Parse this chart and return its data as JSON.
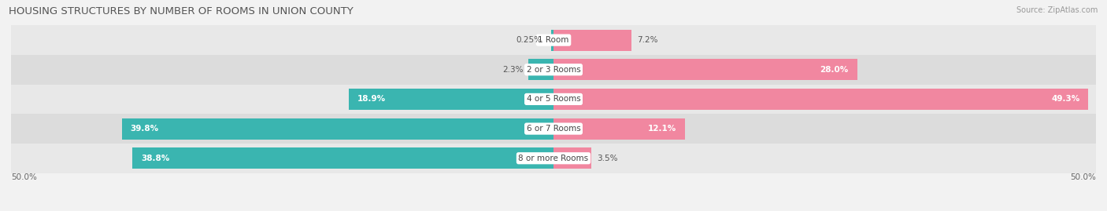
{
  "title": "HOUSING STRUCTURES BY NUMBER OF ROOMS IN UNION COUNTY",
  "source": "Source: ZipAtlas.com",
  "categories": [
    "1 Room",
    "2 or 3 Rooms",
    "4 or 5 Rooms",
    "6 or 7 Rooms",
    "8 or more Rooms"
  ],
  "owner_values": [
    0.25,
    2.3,
    18.9,
    39.8,
    38.8
  ],
  "renter_values": [
    7.2,
    28.0,
    49.3,
    12.1,
    3.5
  ],
  "owner_color": "#3ab5b0",
  "renter_color": "#f187a0",
  "background_color": "#f2f2f2",
  "bar_bg_color_even": "#e8e8e8",
  "bar_bg_color_odd": "#dcdcdc",
  "xlim": 50.0,
  "axis_label_left": "50.0%",
  "axis_label_right": "50.0%",
  "title_fontsize": 9.5,
  "source_fontsize": 7,
  "value_fontsize": 7.5,
  "category_fontsize": 7.5,
  "legend_fontsize": 8,
  "bar_height": 0.72
}
